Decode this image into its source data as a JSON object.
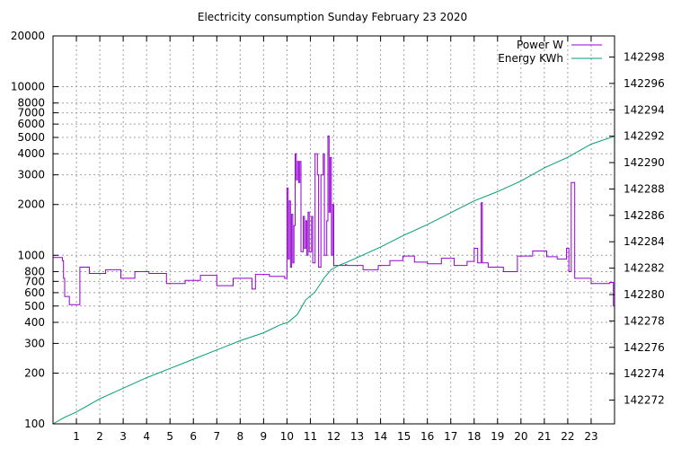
{
  "chart_data": {
    "type": "line",
    "title": "Electricity consumption Sunday February 23 2020",
    "x": {
      "min": 0,
      "max": 24,
      "tick_values": [
        1,
        2,
        3,
        4,
        5,
        6,
        7,
        8,
        9,
        10,
        11,
        12,
        13,
        14,
        15,
        16,
        17,
        18,
        19,
        20,
        21,
        22,
        23
      ],
      "tick_labels": [
        "1",
        "2",
        "3",
        "4",
        "5",
        "6",
        "7",
        "8",
        "9",
        "10",
        "11",
        "12",
        "13",
        "14",
        "15",
        "16",
        "17",
        "18",
        "19",
        "20",
        "21",
        "22",
        "23"
      ],
      "grid": true
    },
    "y_left": {
      "scale": "log",
      "min": 100,
      "max": 20000,
      "tick_values": [
        100,
        200,
        300,
        400,
        500,
        600,
        700,
        800,
        1000,
        2000,
        3000,
        4000,
        5000,
        6000,
        7000,
        8000,
        10000,
        20000
      ],
      "tick_labels": [
        "100",
        "200",
        "300",
        "400",
        "500",
        "600",
        "700",
        "800",
        "1000",
        "2000",
        "3000",
        "4000",
        "5000",
        "6000",
        "7000",
        "8000",
        "10000",
        "20000"
      ],
      "grid": true
    },
    "y_right": {
      "scale": "linear",
      "min": 142270.2,
      "max": 142299.6,
      "tick_values": [
        142272,
        142274,
        142276,
        142278,
        142280,
        142282,
        142284,
        142286,
        142288,
        142290,
        142292,
        142294,
        142296,
        142298
      ],
      "tick_labels": [
        "142272",
        "142274",
        "142276",
        "142278",
        "142280",
        "142282",
        "142284",
        "142286",
        "142288",
        "142290",
        "142292",
        "142294",
        "142296",
        "142298"
      ]
    },
    "legend": {
      "position": "top-right"
    },
    "series": [
      {
        "name": "Power W",
        "axis": "left",
        "color": "#9400d3",
        "step": true,
        "points": [
          [
            0,
            970
          ],
          [
            0.4,
            930
          ],
          [
            0.45,
            730
          ],
          [
            0.5,
            570
          ],
          [
            0.7,
            510
          ],
          [
            1.15,
            850
          ],
          [
            1.55,
            780
          ],
          [
            2.25,
            820
          ],
          [
            2.9,
            730
          ],
          [
            3.5,
            800
          ],
          [
            4.1,
            780
          ],
          [
            4.85,
            680
          ],
          [
            5.65,
            710
          ],
          [
            6.3,
            760
          ],
          [
            7.0,
            660
          ],
          [
            7.7,
            730
          ],
          [
            8.5,
            630
          ],
          [
            8.65,
            770
          ],
          [
            9.25,
            750
          ],
          [
            9.9,
            730
          ],
          [
            10.0,
            2500
          ],
          [
            10.05,
            950
          ],
          [
            10.1,
            2100
          ],
          [
            10.15,
            850
          ],
          [
            10.2,
            1750
          ],
          [
            10.25,
            900
          ],
          [
            10.3,
            1500
          ],
          [
            10.35,
            4000
          ],
          [
            10.4,
            2800
          ],
          [
            10.45,
            3600
          ],
          [
            10.5,
            2700
          ],
          [
            10.55,
            3600
          ],
          [
            10.6,
            1050
          ],
          [
            10.7,
            1700
          ],
          [
            10.75,
            1100
          ],
          [
            10.8,
            1600
          ],
          [
            10.85,
            1000
          ],
          [
            10.9,
            1800
          ],
          [
            10.95,
            1050
          ],
          [
            11.05,
            1700
          ],
          [
            11.1,
            900
          ],
          [
            11.2,
            4000
          ],
          [
            11.3,
            3000
          ],
          [
            11.35,
            850
          ],
          [
            11.45,
            3000
          ],
          [
            11.55,
            4000
          ],
          [
            11.6,
            1000
          ],
          [
            11.7,
            1600
          ],
          [
            11.75,
            5100
          ],
          [
            11.8,
            1800
          ],
          [
            11.85,
            3800
          ],
          [
            11.9,
            1000
          ],
          [
            11.95,
            2000
          ],
          [
            12.0,
            870
          ],
          [
            12.5,
            880
          ],
          [
            12.55,
            870
          ],
          [
            13.25,
            820
          ],
          [
            13.9,
            870
          ],
          [
            14.4,
            930
          ],
          [
            14.95,
            990
          ],
          [
            15.45,
            910
          ],
          [
            16.0,
            890
          ],
          [
            16.6,
            960
          ],
          [
            17.15,
            870
          ],
          [
            17.7,
            920
          ],
          [
            18.0,
            1100
          ],
          [
            18.15,
            900
          ],
          [
            18.3,
            2050
          ],
          [
            18.35,
            900
          ],
          [
            18.6,
            850
          ],
          [
            19.25,
            800
          ],
          [
            19.85,
            990
          ],
          [
            20.5,
            1060
          ],
          [
            21.1,
            980
          ],
          [
            21.55,
            950
          ],
          [
            21.95,
            1100
          ],
          [
            22.05,
            800
          ],
          [
            22.15,
            2700
          ],
          [
            22.3,
            730
          ],
          [
            23.0,
            680
          ],
          [
            23.8,
            690
          ],
          [
            23.95,
            500
          ]
        ]
      },
      {
        "name": "Energy KWh",
        "axis": "right",
        "color": "#009e73",
        "step": false,
        "points": [
          [
            0,
            142270.2
          ],
          [
            0.5,
            142270.7
          ],
          [
            1.0,
            142271.1
          ],
          [
            1.5,
            142271.6
          ],
          [
            2.0,
            142272.1
          ],
          [
            3.0,
            142272.9
          ],
          [
            4.0,
            142273.7
          ],
          [
            5.0,
            142274.4
          ],
          [
            6.0,
            142275.1
          ],
          [
            7.0,
            142275.8
          ],
          [
            8.0,
            142276.5
          ],
          [
            9.0,
            142277.1
          ],
          [
            9.7,
            142277.7
          ],
          [
            10.05,
            142277.9
          ],
          [
            10.45,
            142278.5
          ],
          [
            10.8,
            142279.6
          ],
          [
            11.2,
            142280.2
          ],
          [
            11.6,
            142281.3
          ],
          [
            11.9,
            142281.9
          ],
          [
            12.2,
            142282.2
          ],
          [
            12.5,
            142282.4
          ],
          [
            13.0,
            142282.8
          ],
          [
            14.0,
            142283.6
          ],
          [
            15.0,
            142284.5
          ],
          [
            16.0,
            142285.3
          ],
          [
            17.0,
            142286.2
          ],
          [
            18.0,
            142287.1
          ],
          [
            19.0,
            142287.8
          ],
          [
            20.0,
            142288.6
          ],
          [
            21.0,
            142289.6
          ],
          [
            22.0,
            142290.4
          ],
          [
            22.5,
            142290.9
          ],
          [
            23.0,
            142291.4
          ],
          [
            24.0,
            142292.0
          ]
        ]
      }
    ]
  }
}
